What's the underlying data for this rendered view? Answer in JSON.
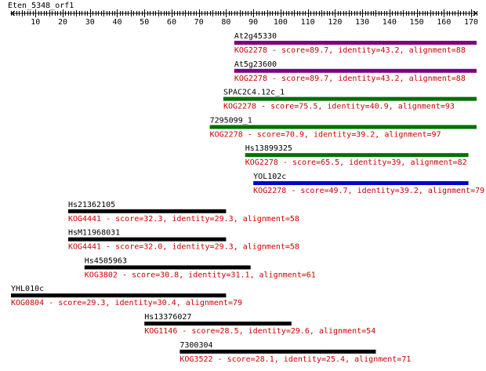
{
  "query": {
    "name": "Eten_5348_orf1",
    "length": 172
  },
  "axis": {
    "min": 1,
    "max": 172,
    "major_ticks": [
      10,
      20,
      30,
      40,
      50,
      60,
      70,
      80,
      90,
      100,
      110,
      120,
      130,
      140,
      150,
      160,
      170
    ],
    "tick_labels": [
      "10",
      "20",
      "30",
      "40",
      "50",
      "60",
      "70",
      "80",
      "90",
      "100",
      "110",
      "120",
      "130",
      "140",
      "150",
      "160",
      "170"
    ]
  },
  "colors": {
    "purple": "#800080",
    "green": "#007000",
    "blue": "#0000cc",
    "black": "#000000",
    "desc_red": "#cc0000"
  },
  "hits": [
    {
      "name": "At2g45330",
      "start": 83,
      "end": 172,
      "color": "purple",
      "description": "KOG2278 - score=89.7, identity=43.2, alignment=88"
    },
    {
      "name": "At5g23600",
      "start": 83,
      "end": 172,
      "color": "purple",
      "description": "KOG2278 - score=89.7, identity=43.2, alignment=88"
    },
    {
      "name": "SPAC2C4.12c_1",
      "start": 79,
      "end": 172,
      "color": "green",
      "description": "KOG2278 - score=75.5, identity=40.9, alignment=93"
    },
    {
      "name": "7295099_1",
      "start": 74,
      "end": 172,
      "color": "green",
      "description": "KOG2278 - score=70.9, identity=39.2, alignment=97"
    },
    {
      "name": "Hs13899325",
      "start": 87,
      "end": 169,
      "color": "green",
      "description": "KOG2278 - score=65.5, identity=39, alignment=82"
    },
    {
      "name": "YOL102c",
      "start": 90,
      "end": 169,
      "color": "blue",
      "description": "KOG2278 - score=49.7, identity=39.2, alignment=79"
    },
    {
      "name": "Hs21362105",
      "start": 22,
      "end": 80,
      "color": "black",
      "description": "KOG4441 - score=32.3, identity=29.3, alignment=58"
    },
    {
      "name": "HsM11968031",
      "start": 22,
      "end": 80,
      "color": "black",
      "description": "KOG4441 - score=32.0, identity=29.3, alignment=58"
    },
    {
      "name": "Hs4505963",
      "start": 28,
      "end": 89,
      "color": "black",
      "description": "KOG3802 - score=30.8, identity=31.1, alignment=61"
    },
    {
      "name": "YHL010c",
      "start": 1,
      "end": 80,
      "color": "black",
      "description": "KOG0804 - score=29.3, identity=30.4, alignment=79"
    },
    {
      "name": "Hs13376027",
      "start": 50,
      "end": 104,
      "color": "black",
      "description": "KOG1146 - score=28.5, identity=29.6, alignment=54"
    },
    {
      "name": "7300304",
      "start": 63,
      "end": 135,
      "color": "black",
      "description": "KOG3522 - score=28.1, identity=25.4, alignment=71"
    }
  ]
}
